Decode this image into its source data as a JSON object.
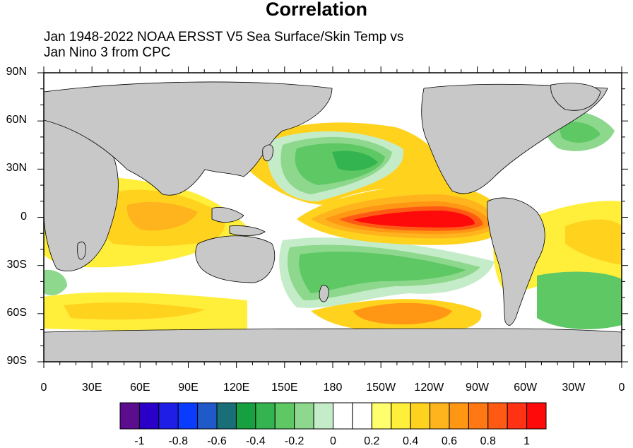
{
  "title": "Correlation",
  "subtitle_line1": "Jan 1948-2022 NOAA ERSST V5 Sea Surface/Skin Temp vs",
  "subtitle_line2": "Jan Nino 3 from CPC",
  "map": {
    "projection": "equirectangular",
    "lon_range": [
      0,
      360
    ],
    "lat_range": [
      -90,
      90
    ],
    "land_color": "#c8c8c8",
    "lat_labels": [
      "90N",
      "60N",
      "30N",
      "0",
      "30S",
      "60S",
      "90S"
    ],
    "lon_labels": [
      "0",
      "30E",
      "60E",
      "90E",
      "120E",
      "150E",
      "180",
      "150W",
      "120W",
      "90W",
      "60W",
      "30W",
      "0"
    ]
  },
  "colorbar": {
    "colors": [
      "#5b0d8e",
      "#2a00c8",
      "#1e1ee6",
      "#0a3cff",
      "#1f5ac8",
      "#1a6e78",
      "#16a040",
      "#34b450",
      "#5ec864",
      "#8ed88e",
      "#c4ecc8",
      "#ffffff",
      "#ffffff",
      "#ffff6e",
      "#ffef3a",
      "#ffd21e",
      "#ffb41e",
      "#ff9614",
      "#ff7814",
      "#ff5a14",
      "#ff3214",
      "#ff0a0a"
    ],
    "labels": [
      "-1",
      "-0.8",
      "-0.6",
      "-0.4",
      "-0.2",
      "0",
      "0.2",
      "0.4",
      "0.6",
      "0.8",
      "1"
    ]
  }
}
